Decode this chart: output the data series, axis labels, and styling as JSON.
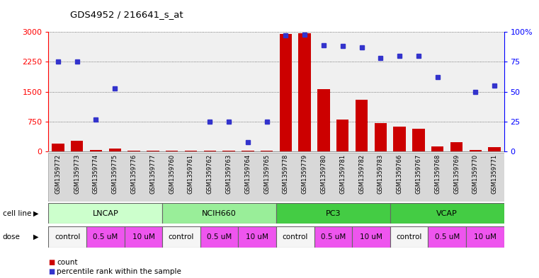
{
  "title": "GDS4952 / 216641_s_at",
  "samples": [
    "GSM1359772",
    "GSM1359773",
    "GSM1359774",
    "GSM1359775",
    "GSM1359776",
    "GSM1359777",
    "GSM1359760",
    "GSM1359761",
    "GSM1359762",
    "GSM1359763",
    "GSM1359764",
    "GSM1359765",
    "GSM1359778",
    "GSM1359779",
    "GSM1359780",
    "GSM1359781",
    "GSM1359782",
    "GSM1359783",
    "GSM1359766",
    "GSM1359767",
    "GSM1359768",
    "GSM1359769",
    "GSM1359770",
    "GSM1359771"
  ],
  "counts": [
    200,
    270,
    30,
    70,
    20,
    20,
    20,
    20,
    20,
    20,
    20,
    20,
    2950,
    2960,
    1570,
    800,
    1300,
    710,
    630,
    580,
    120,
    230,
    30,
    110
  ],
  "percentiles": [
    75,
    75,
    27,
    53,
    null,
    null,
    null,
    null,
    25,
    25,
    8,
    25,
    97,
    98,
    89,
    88,
    87,
    78,
    80,
    80,
    62,
    null,
    50,
    55
  ],
  "ylim_left": [
    0,
    3000
  ],
  "yticks_left": [
    0,
    750,
    1500,
    2250,
    3000
  ],
  "ylim_right": [
    0,
    100
  ],
  "yticks_right": [
    0,
    25,
    50,
    75,
    100
  ],
  "bar_color": "#cc0000",
  "dot_color": "#3333cc",
  "grid_color": "#555555",
  "bg_color": "#ffffff",
  "plot_bg": "#f0f0f0",
  "legend_count": "count",
  "legend_percentile": "percentile rank within the sample",
  "cell_groups": [
    {
      "label": "LNCAP",
      "start": 0,
      "end": 6,
      "color": "#ccffcc"
    },
    {
      "label": "NCIH660",
      "start": 6,
      "end": 12,
      "color": "#99ee99"
    },
    {
      "label": "PC3",
      "start": 12,
      "end": 18,
      "color": "#44cc44"
    },
    {
      "label": "VCAP",
      "start": 18,
      "end": 24,
      "color": "#44cc44"
    }
  ],
  "dose_groups": [
    {
      "label": "control",
      "start": 0,
      "end": 2,
      "color": "#f5f5f5"
    },
    {
      "label": "0.5 uM",
      "start": 2,
      "end": 4,
      "color": "#ee55ee"
    },
    {
      "label": "10 uM",
      "start": 4,
      "end": 6,
      "color": "#ee55ee"
    },
    {
      "label": "control",
      "start": 6,
      "end": 8,
      "color": "#f5f5f5"
    },
    {
      "label": "0.5 uM",
      "start": 8,
      "end": 10,
      "color": "#ee55ee"
    },
    {
      "label": "10 uM",
      "start": 10,
      "end": 12,
      "color": "#ee55ee"
    },
    {
      "label": "control",
      "start": 12,
      "end": 14,
      "color": "#f5f5f5"
    },
    {
      "label": "0.5 uM",
      "start": 14,
      "end": 16,
      "color": "#ee55ee"
    },
    {
      "label": "10 uM",
      "start": 16,
      "end": 18,
      "color": "#ee55ee"
    },
    {
      "label": "control",
      "start": 18,
      "end": 20,
      "color": "#f5f5f5"
    },
    {
      "label": "0.5 uM",
      "start": 20,
      "end": 22,
      "color": "#ee55ee"
    },
    {
      "label": "10 uM",
      "start": 22,
      "end": 24,
      "color": "#ee55ee"
    }
  ]
}
